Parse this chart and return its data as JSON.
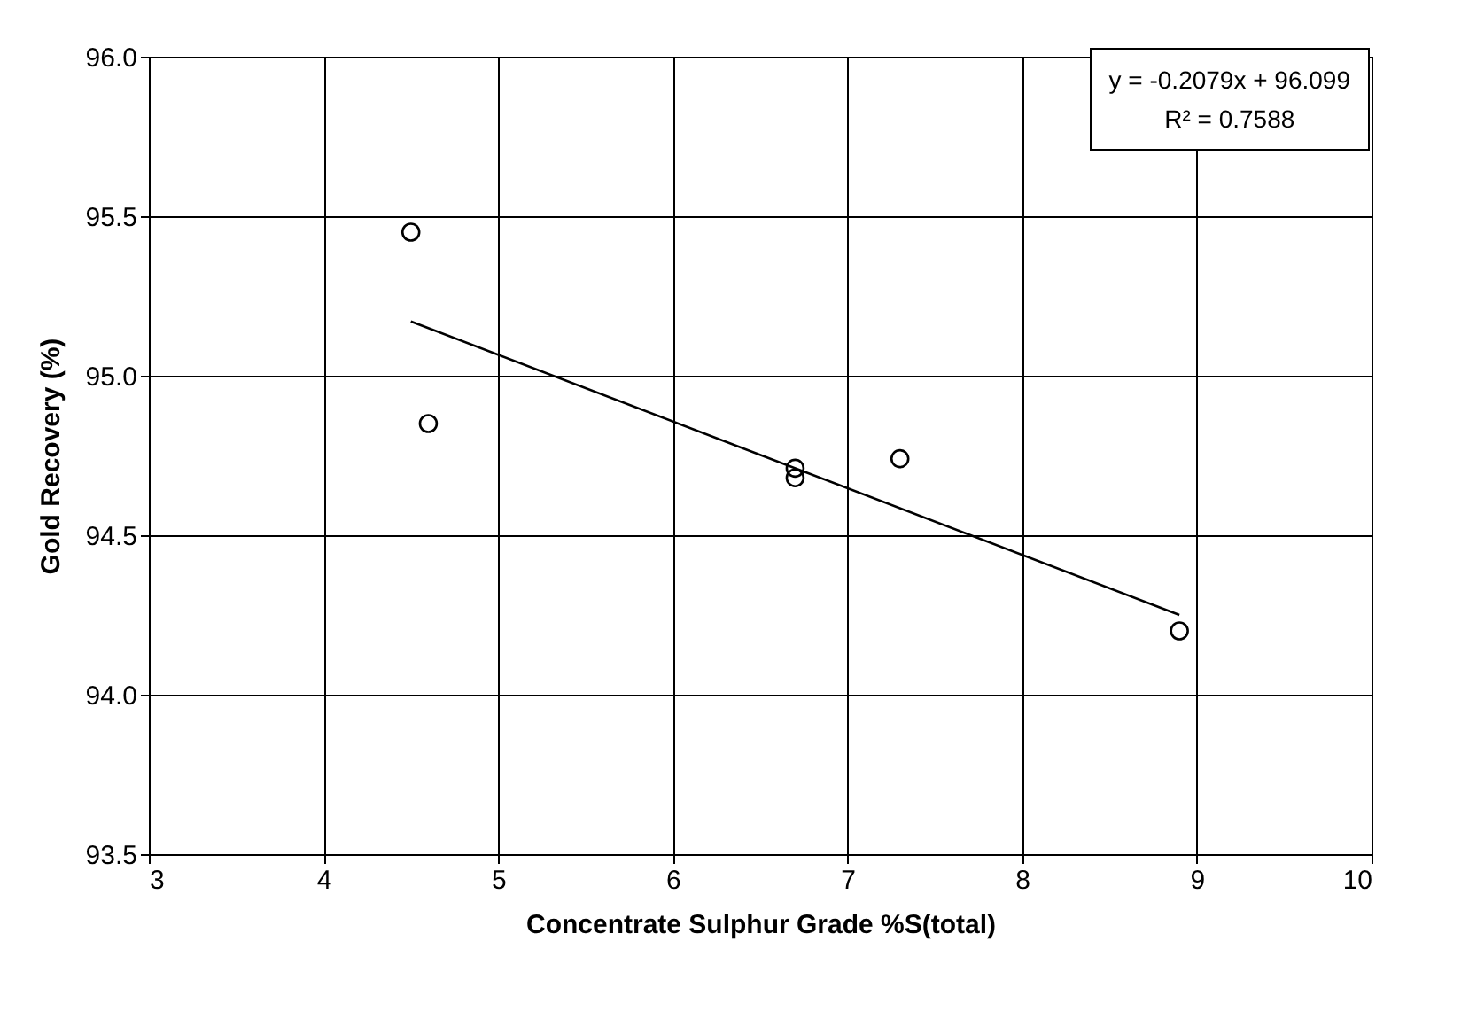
{
  "chart_data": {
    "type": "scatter",
    "xlabel": "Concentrate Sulphur Grade %S(total)",
    "ylabel": "Gold Recovery (%)",
    "xlim": [
      3,
      10
    ],
    "xticks": [
      3,
      4,
      5,
      6,
      7,
      8,
      9,
      10
    ],
    "ylim": [
      93.5,
      96.0
    ],
    "yticks": [
      {
        "value": 93.5,
        "label": "93.5"
      },
      {
        "value": 94.0,
        "label": "94.0"
      },
      {
        "value": 94.5,
        "label": "94.5"
      },
      {
        "value": 95.0,
        "label": "95.0"
      },
      {
        "value": 95.5,
        "label": "95.5"
      },
      {
        "value": 96.0,
        "label": "96.0"
      }
    ],
    "grid": true,
    "marker": "circle",
    "series": [
      {
        "color": "#000000",
        "x": [
          4.5,
          4.6,
          6.7,
          6.7,
          7.3,
          8.9
        ],
        "values": [
          95.45,
          94.85,
          94.71,
          94.68,
          94.74,
          94.2
        ]
      },
      {
        "type": "line",
        "color": "#000000",
        "marker": "none",
        "x": [
          4.5,
          8.9
        ],
        "values": [
          95.17,
          94.25
        ]
      }
    ],
    "annotations": [
      "y = -0.2079x + 96.099",
      "R² = 0.7588"
    ]
  }
}
